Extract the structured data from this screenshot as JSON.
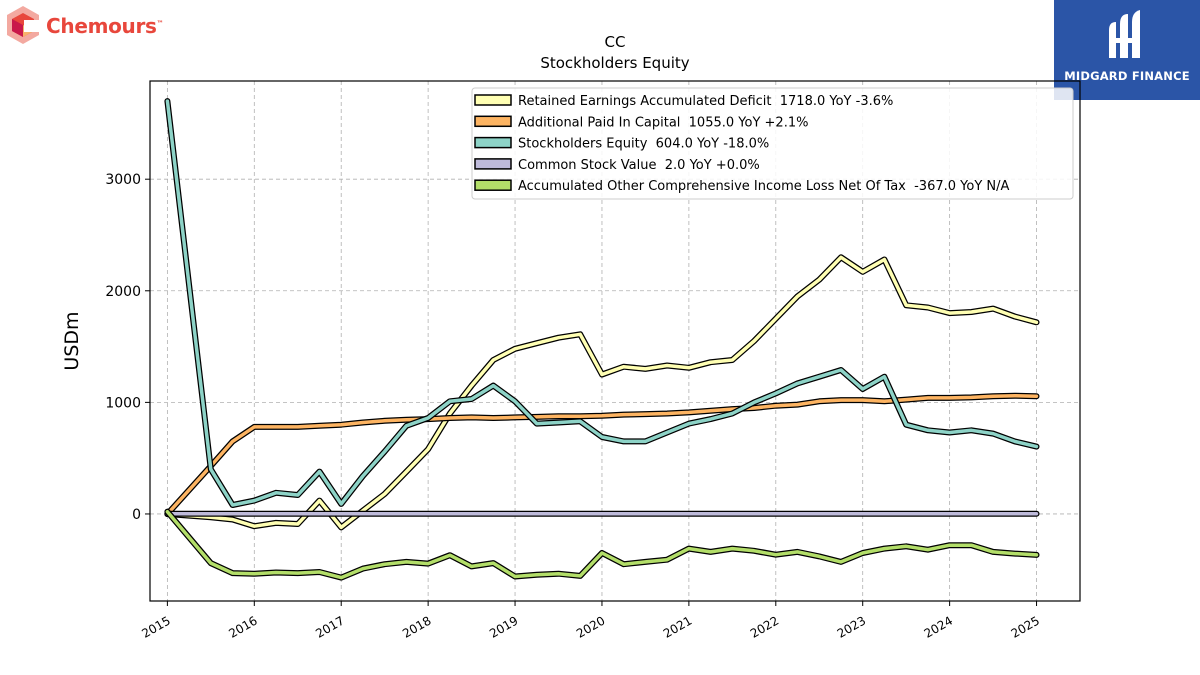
{
  "logos": {
    "left": {
      "text": "Chemours",
      "tm": "™"
    },
    "right": {
      "text": "MIDGARD FINANCE"
    }
  },
  "chart_data": {
    "type": "line",
    "title": "CC",
    "subtitle": "Stockholders  Equity",
    "ylabel": "USDm",
    "xlabel": "",
    "xlim": [
      2014.8,
      2025.5
    ],
    "ylim": [
      -780,
      3880
    ],
    "yticks": [
      0,
      1000,
      2000,
      3000
    ],
    "xticks": [
      2015,
      2016,
      2017,
      2018,
      2019,
      2020,
      2021,
      2022,
      2023,
      2024,
      2025
    ],
    "grid": true,
    "legend_position": "top-right",
    "series": [
      {
        "name": "Retained Earnings Accumulated Deficit  1718.0 YoY -3.6%",
        "color": "#ffffb3",
        "x": [
          2015.0,
          2015.5,
          2015.75,
          2016.0,
          2016.25,
          2016.5,
          2016.75,
          2017.0,
          2017.25,
          2017.5,
          2017.75,
          2018.0,
          2018.25,
          2018.5,
          2018.75,
          2019.0,
          2019.25,
          2019.5,
          2019.75,
          2020.0,
          2020.25,
          2020.5,
          2020.75,
          2021.0,
          2021.25,
          2021.5,
          2021.75,
          2022.0,
          2022.25,
          2022.5,
          2022.75,
          2023.0,
          2023.25,
          2023.5,
          2023.75,
          2024.0,
          2024.25,
          2024.5,
          2024.75,
          2025.0
        ],
        "y": [
          0,
          -30,
          -50,
          -110,
          -80,
          -90,
          120,
          -120,
          30,
          180,
          380,
          580,
          900,
          1150,
          1380,
          1480,
          1530,
          1580,
          1610,
          1250,
          1320,
          1300,
          1330,
          1310,
          1360,
          1380,
          1550,
          1750,
          1950,
          2100,
          2300,
          2170,
          2280,
          1870,
          1850,
          1800,
          1810,
          1840,
          1770,
          1718
        ]
      },
      {
        "name": "Additional Paid In Capital  1055.0 YoY +2.1%",
        "color": "#fdb462",
        "x": [
          2015.0,
          2015.5,
          2015.75,
          2016.0,
          2016.25,
          2016.5,
          2016.75,
          2017.0,
          2017.25,
          2017.5,
          2017.75,
          2018.0,
          2018.25,
          2018.5,
          2018.75,
          2019.0,
          2019.25,
          2019.5,
          2019.75,
          2020.0,
          2020.25,
          2020.5,
          2020.75,
          2021.0,
          2021.25,
          2021.5,
          2021.75,
          2022.0,
          2022.25,
          2022.5,
          2022.75,
          2023.0,
          2023.25,
          2023.5,
          2023.75,
          2024.0,
          2024.25,
          2024.5,
          2024.75,
          2025.0
        ],
        "y": [
          0,
          430,
          650,
          780,
          780,
          780,
          790,
          800,
          820,
          835,
          845,
          850,
          860,
          865,
          860,
          865,
          870,
          875,
          875,
          880,
          890,
          895,
          900,
          910,
          925,
          940,
          950,
          970,
          980,
          1010,
          1020,
          1020,
          1010,
          1025,
          1040,
          1040,
          1045,
          1055,
          1060,
          1055
        ]
      },
      {
        "name": "Stockholders Equity  604.0 YoY -18.0%",
        "color": "#8dd3c7",
        "x": [
          2015.0,
          2015.5,
          2015.75,
          2016.0,
          2016.25,
          2016.5,
          2016.75,
          2017.0,
          2017.25,
          2017.5,
          2017.75,
          2018.0,
          2018.25,
          2018.5,
          2018.75,
          2019.0,
          2019.25,
          2019.5,
          2019.75,
          2020.0,
          2020.25,
          2020.5,
          2020.75,
          2021.0,
          2021.25,
          2021.5,
          2021.75,
          2022.0,
          2022.25,
          2022.5,
          2022.75,
          2023.0,
          2023.25,
          2023.5,
          2023.75,
          2024.0,
          2024.25,
          2024.5,
          2024.75,
          2025.0
        ],
        "y": [
          3700,
          400,
          80,
          120,
          190,
          170,
          380,
          90,
          340,
          560,
          790,
          860,
          1010,
          1030,
          1150,
          1010,
          810,
          820,
          830,
          690,
          650,
          650,
          730,
          810,
          850,
          900,
          1000,
          1080,
          1170,
          1230,
          1290,
          1120,
          1230,
          800,
          750,
          730,
          750,
          720,
          650,
          604
        ]
      },
      {
        "name": "Common Stock Value  2.0 YoY +0.0%",
        "color": "#bebada",
        "x": [
          2015.0,
          2016.0,
          2017.0,
          2018.0,
          2019.0,
          2020.0,
          2021.0,
          2022.0,
          2023.0,
          2024.0,
          2025.0
        ],
        "y": [
          2,
          2,
          2,
          2,
          2,
          2,
          2,
          2,
          2,
          2,
          2
        ]
      },
      {
        "name": "Accumulated Other Comprehensive Income Loss Net Of Tax  -367.0 YoY N/A",
        "color": "#b3de69",
        "x": [
          2015.0,
          2015.5,
          2015.75,
          2016.0,
          2016.25,
          2016.5,
          2016.75,
          2017.0,
          2017.25,
          2017.5,
          2017.75,
          2018.0,
          2018.25,
          2018.5,
          2018.75,
          2019.0,
          2019.25,
          2019.5,
          2019.75,
          2020.0,
          2020.25,
          2020.5,
          2020.75,
          2021.0,
          2021.25,
          2021.5,
          2021.75,
          2022.0,
          2022.25,
          2022.5,
          2022.75,
          2023.0,
          2023.25,
          2023.5,
          2023.75,
          2024.0,
          2024.25,
          2024.5,
          2024.75,
          2025.0
        ],
        "y": [
          20,
          -440,
          -530,
          -535,
          -525,
          -530,
          -520,
          -570,
          -490,
          -450,
          -430,
          -445,
          -370,
          -470,
          -440,
          -560,
          -545,
          -535,
          -555,
          -350,
          -450,
          -430,
          -410,
          -310,
          -340,
          -310,
          -330,
          -365,
          -340,
          -380,
          -430,
          -350,
          -310,
          -290,
          -320,
          -280,
          -280,
          -340,
          -355,
          -367
        ]
      }
    ]
  }
}
